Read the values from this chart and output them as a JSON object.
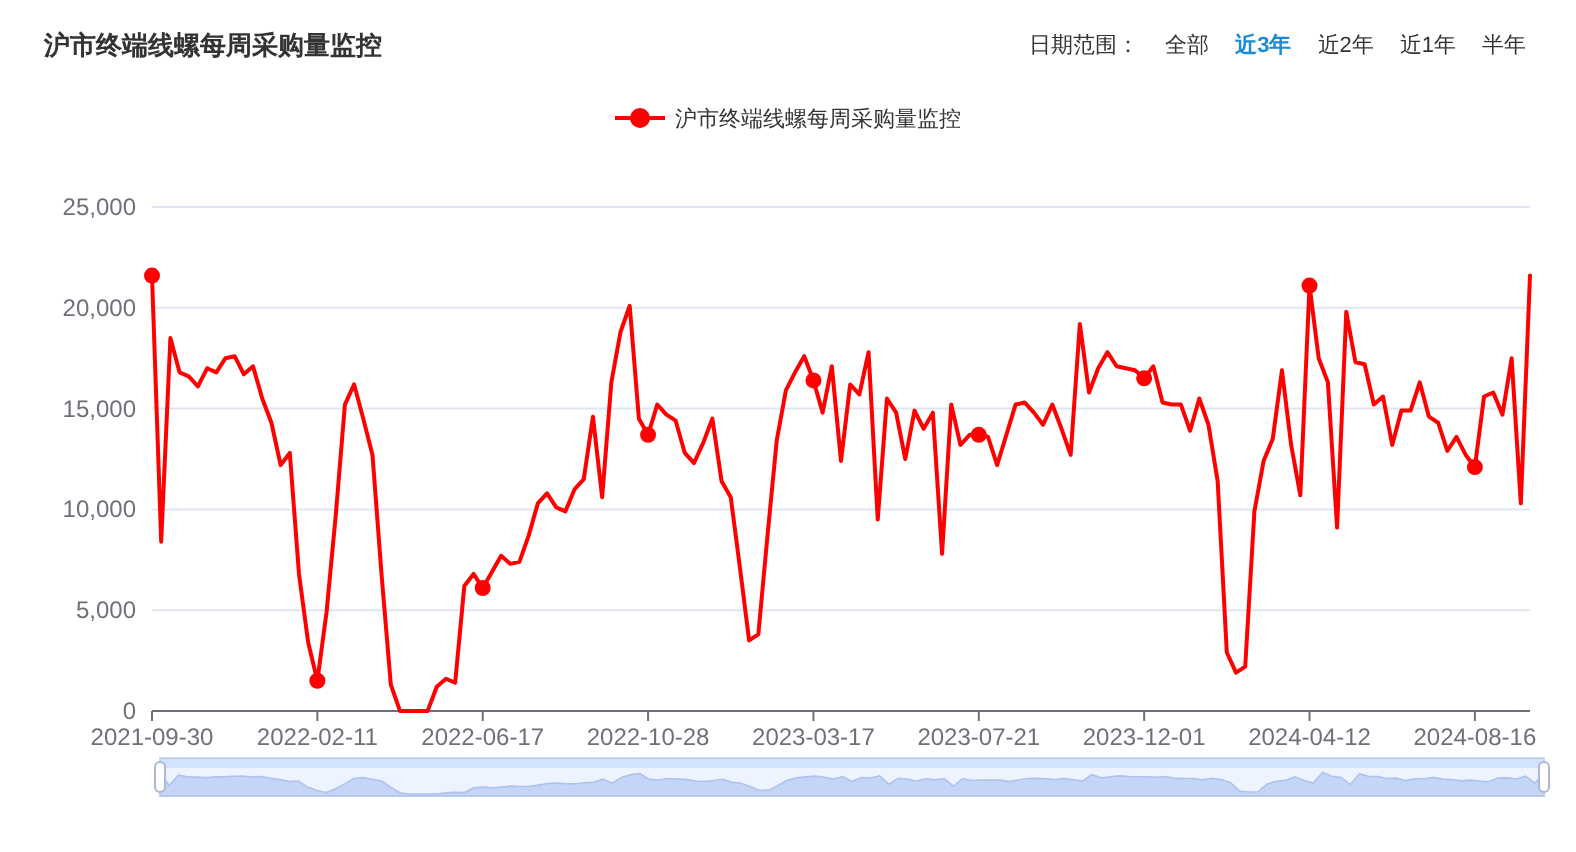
{
  "chart_data": {
    "type": "line",
    "title": "沪市终端线螺每周采购量监控",
    "annotations": [
      "日期范围：",
      "全部",
      "近3年",
      "近2年",
      "近1年",
      "半年"
    ],
    "legend": "top",
    "grid": "y",
    "ylim": [
      0,
      25000
    ],
    "yticks": [
      0,
      {
        "value": 5000,
        "label": "5,000"
      },
      {
        "value": 10000,
        "label": "10,000"
      },
      {
        "value": 15000,
        "label": "15,000"
      },
      {
        "value": 20000,
        "label": "20,000"
      },
      {
        "value": 25000,
        "label": "25,000"
      }
    ],
    "categories": [
      "2021-09-30",
      null,
      null,
      null,
      null,
      null,
      null,
      null,
      null,
      null,
      null,
      null,
      null,
      null,
      null,
      null,
      null,
      null,
      "2022-02-11",
      null,
      null,
      null,
      null,
      null,
      null,
      null,
      null,
      null,
      null,
      null,
      null,
      null,
      null,
      null,
      null,
      null,
      "2022-06-17",
      null,
      null,
      null,
      null,
      null,
      null,
      null,
      null,
      null,
      null,
      null,
      null,
      null,
      null,
      null,
      null,
      null,
      "2022-10-28",
      null,
      null,
      null,
      null,
      null,
      null,
      null,
      null,
      null,
      null,
      null,
      null,
      null,
      null,
      null,
      null,
      null,
      "2023-03-17",
      null,
      null,
      null,
      null,
      null,
      null,
      null,
      null,
      null,
      null,
      null,
      null,
      null,
      null,
      null,
      null,
      null,
      "2023-07-21",
      null,
      null,
      null,
      null,
      null,
      null,
      null,
      null,
      null,
      null,
      null,
      null,
      null,
      null,
      null,
      null,
      null,
      "2023-12-01",
      null,
      null,
      null,
      null,
      null,
      null,
      null,
      null,
      null,
      null,
      null,
      null,
      null,
      null,
      null,
      null,
      null,
      "2024-04-12",
      null,
      null,
      null,
      null,
      null,
      null,
      null,
      null,
      null,
      null,
      null,
      null,
      null,
      null,
      null,
      null,
      null,
      "2024-08-16",
      null,
      null,
      null,
      null,
      null,
      null
    ],
    "series": [
      {
        "name": "沪市终端线螺每周采购量监控",
        "color": "#ff0000",
        "values": [
          21600,
          8400,
          18500,
          16800,
          16600,
          16100,
          17000,
          16800,
          17500,
          17600,
          16700,
          17100,
          15500,
          14300,
          12200,
          12800,
          6800,
          3400,
          1500,
          4900,
          9700,
          15200,
          16200,
          14500,
          12700,
          6700,
          1300,
          0,
          0,
          0,
          0,
          1200,
          1600,
          1400,
          6200,
          6800,
          6100,
          6900,
          7700,
          7300,
          7400,
          8700,
          10300,
          10800,
          10100,
          9900,
          11000,
          11500,
          14600,
          10600,
          16300,
          18800,
          20100,
          14500,
          13700,
          15200,
          14700,
          14400,
          12800,
          12300,
          13300,
          14500,
          11400,
          10600,
          7100,
          3500,
          3800,
          8700,
          13400,
          15900,
          16800,
          17600,
          16400,
          14800,
          17100,
          12400,
          16200,
          15700,
          17800,
          9500,
          15500,
          14800,
          12500,
          14900,
          14000,
          14800,
          7800,
          15200,
          13200,
          13700,
          13700,
          13600,
          12200,
          13700,
          15200,
          15300,
          14800,
          14200,
          15200,
          14000,
          12700,
          19200,
          15800,
          17000,
          17800,
          17100,
          17000,
          16900,
          16500,
          17100,
          15300,
          15200,
          15200,
          13900,
          15500,
          14200,
          11400,
          2900,
          1900,
          2200,
          9900,
          12400,
          13500,
          16900,
          13200,
          10700,
          21100,
          17500,
          16300,
          9100,
          19800,
          17300,
          17200,
          15200,
          15600,
          13200,
          14900,
          14900,
          16300,
          14600,
          14300,
          12900,
          13600,
          12700,
          12100,
          15600,
          15800,
          14700,
          17500,
          10300,
          21600
        ]
      },
      {
        "type": "scatter",
        "color": "#ff0000",
        "values": [
          21600,
          null,
          null,
          null,
          null,
          null,
          null,
          null,
          null,
          null,
          null,
          null,
          null,
          null,
          null,
          null,
          null,
          null,
          1500,
          null,
          null,
          null,
          null,
          null,
          null,
          null,
          null,
          null,
          null,
          null,
          null,
          null,
          null,
          null,
          null,
          null,
          6100,
          null,
          null,
          null,
          null,
          null,
          null,
          null,
          null,
          null,
          null,
          null,
          null,
          null,
          null,
          null,
          null,
          null,
          13700,
          null,
          null,
          null,
          null,
          null,
          null,
          null,
          null,
          null,
          null,
          null,
          null,
          null,
          null,
          null,
          null,
          null,
          16400,
          null,
          null,
          null,
          null,
          null,
          null,
          null,
          null,
          null,
          null,
          null,
          null,
          null,
          null,
          null,
          null,
          null,
          13700,
          null,
          null,
          null,
          null,
          null,
          null,
          null,
          null,
          null,
          null,
          null,
          null,
          null,
          null,
          null,
          null,
          null,
          16500,
          null,
          null,
          null,
          null,
          null,
          null,
          null,
          null,
          null,
          null,
          null,
          null,
          null,
          null,
          null,
          null,
          null,
          21100,
          null,
          null,
          null,
          null,
          null,
          null,
          null,
          null,
          null,
          null,
          null,
          null,
          null,
          null,
          null,
          null,
          null,
          12100,
          null,
          null,
          null,
          null,
          null,
          null
        ]
      }
    ]
  }
}
